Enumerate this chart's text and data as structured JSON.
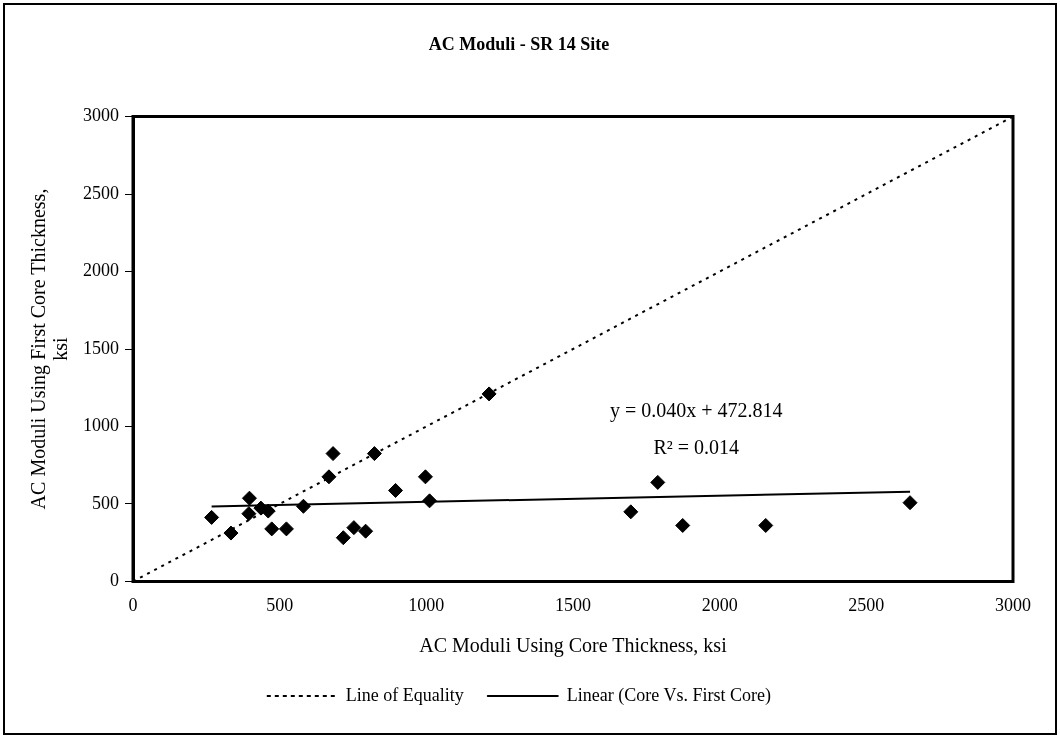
{
  "chart_data": {
    "type": "scatter",
    "title": "AC Moduli - SR 14 Site",
    "xlabel": "AC Moduli Using Core Thickness, ksi",
    "ylabel": "AC Moduli Using First Core Thickness, ksi",
    "xlim": [
      0,
      3000
    ],
    "xticks": [
      0,
      500,
      1000,
      1500,
      2000,
      2500,
      3000
    ],
    "ylim": [
      0,
      3000
    ],
    "yticks": [
      0,
      500,
      1000,
      1500,
      2000,
      2500,
      3000
    ],
    "grid": false,
    "legend": "bottom",
    "annotations": [
      "y = 0.040x + 472.814",
      "R² = 0.014"
    ],
    "series": [
      {
        "color": "#000000",
        "marker": "diamond",
        "x": [
          268,
          334,
          395,
          397,
          436,
          461,
          473,
          523,
          581,
          668,
          682,
          717,
          753,
          793,
          823,
          895,
          997,
          1011,
          1214,
          1697,
          1789,
          1874,
          2157,
          2649
        ],
        "values": [
          413,
          312,
          437,
          537,
          473,
          454,
          339,
          339,
          485,
          675,
          825,
          282,
          347,
          324,
          825,
          587,
          675,
          520,
          1210,
          449,
          639,
          361,
          361,
          508
        ]
      },
      {
        "type": "line",
        "name": "Line of Equality",
        "color": "#000000",
        "marker": "none",
        "line_style": "dotted",
        "x": [
          0,
          3000
        ],
        "values": [
          0,
          3000
        ]
      },
      {
        "type": "line",
        "name": "Linear (Core Vs. First Core)",
        "color": "#000000",
        "marker": "none",
        "line_style": "solid",
        "x": [
          268,
          2649
        ],
        "values": [
          484,
          579
        ]
      }
    ]
  }
}
